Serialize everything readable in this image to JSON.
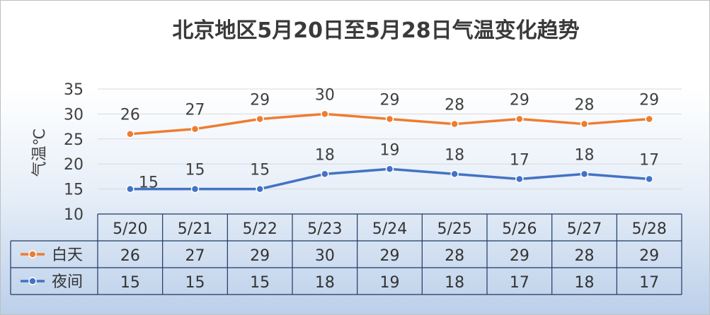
{
  "chart_data": {
    "type": "line",
    "title": "北京地区5月20日至5月28日气温变化趋势",
    "ylabel": "气温℃",
    "xlabel": "",
    "ylim": [
      10,
      35
    ],
    "yticks": [
      10,
      15,
      20,
      25,
      30,
      35
    ],
    "grid": true,
    "legend": "data-table",
    "categories": [
      "5/20",
      "5/21",
      "5/22",
      "5/23",
      "5/24",
      "5/25",
      "5/26",
      "5/27",
      "5/28"
    ],
    "series": [
      {
        "name": "白天",
        "color": "#ed7d31",
        "values": [
          26,
          27,
          29,
          30,
          29,
          28,
          29,
          28,
          29
        ]
      },
      {
        "name": "夜间",
        "color": "#4472c4",
        "values": [
          15,
          15,
          15,
          18,
          19,
          18,
          17,
          18,
          17
        ]
      }
    ]
  }
}
